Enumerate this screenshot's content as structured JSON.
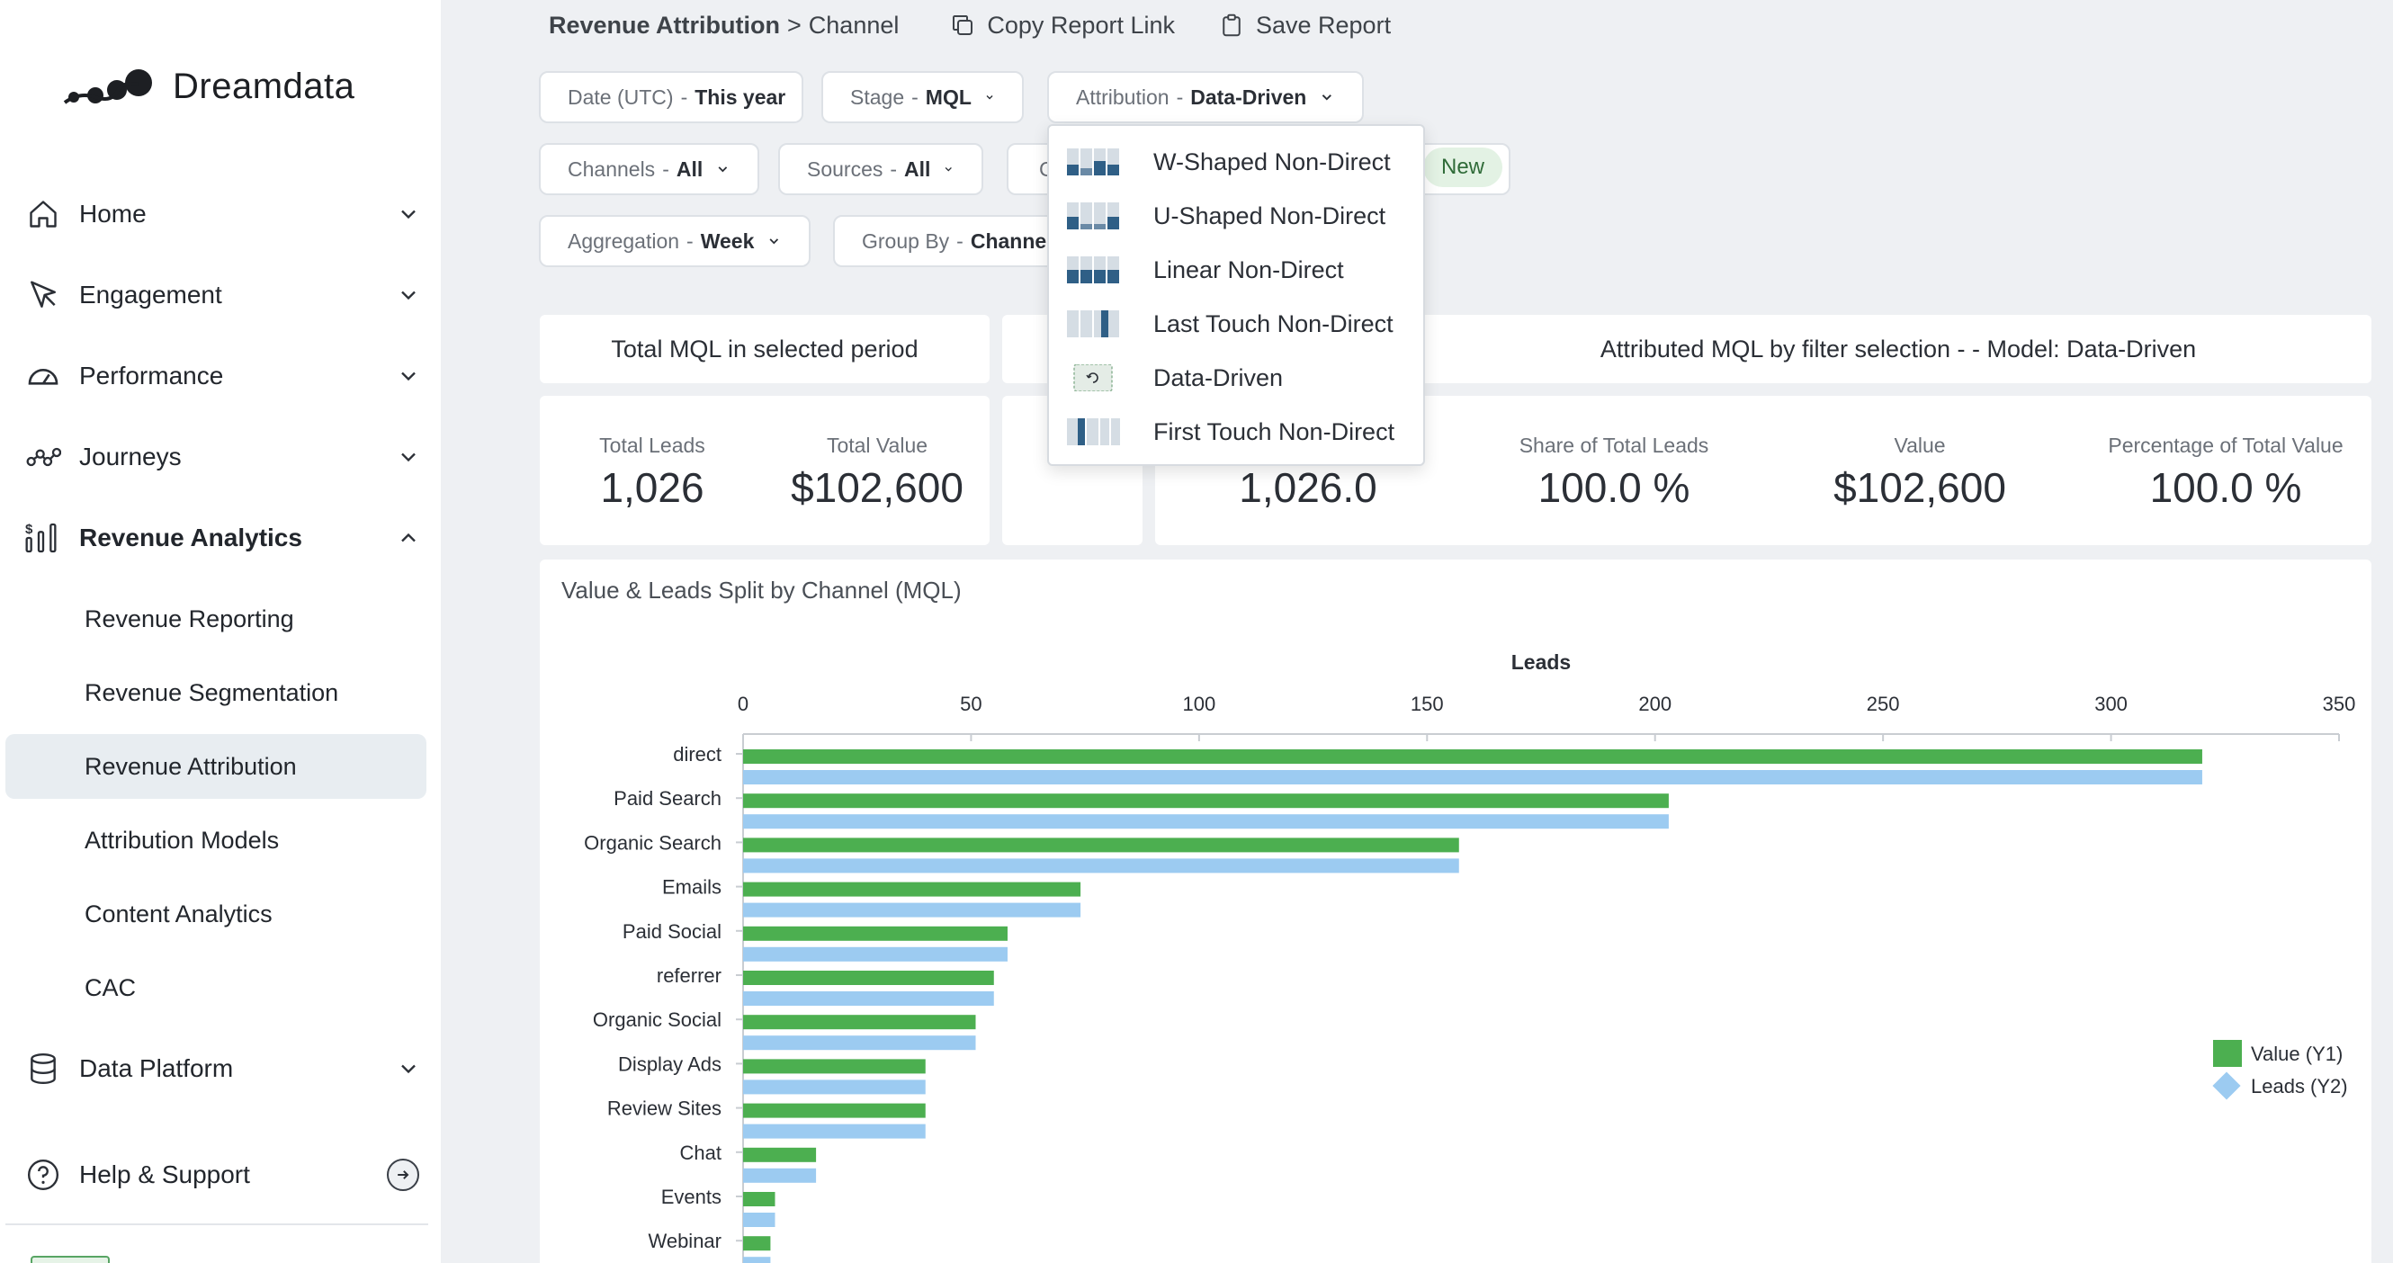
{
  "app": {
    "name": "Dreamdata"
  },
  "sidebar": {
    "items": [
      {
        "label": "Home",
        "icon": "home-icon",
        "expanded": false
      },
      {
        "label": "Engagement",
        "icon": "cursor-icon",
        "expanded": false
      },
      {
        "label": "Performance",
        "icon": "speedometer-icon",
        "expanded": false
      },
      {
        "label": "Journeys",
        "icon": "journeys-icon",
        "expanded": false
      },
      {
        "label": "Revenue Analytics",
        "icon": "revenue-analytics-icon",
        "expanded": true
      }
    ],
    "sub_items": [
      "Revenue Reporting",
      "Revenue Segmentation",
      "Revenue Attribution",
      "Attribution Models",
      "Content Analytics",
      "CAC"
    ],
    "active_sub_item": "Revenue Attribution",
    "data_platform": "Data Platform",
    "help": "Help & Support"
  },
  "breadcrumb": {
    "parent": "Revenue Attribution",
    "separator": ">",
    "current": "Channel"
  },
  "actions": {
    "copy_link": "Copy Report Link",
    "save_report": "Save Report"
  },
  "filters": {
    "date": {
      "label": "Date (UTC)",
      "value": "This year"
    },
    "stage": {
      "label": "Stage",
      "value": "MQL"
    },
    "attribution": {
      "label": "Attribution",
      "value": "Data-Driven"
    },
    "channels": {
      "label": "Channels",
      "value": "All"
    },
    "sources": {
      "label": "Sources",
      "value": "All"
    },
    "hidden_filter": {
      "label": "C"
    },
    "new_badge": "New",
    "aggregation": {
      "label": "Aggregation",
      "value": "Week"
    },
    "group_by": {
      "label": "Group By",
      "value": "Channel"
    }
  },
  "attribution_dropdown": {
    "options": [
      "W-Shaped Non-Direct",
      "U-Shaped Non-Direct",
      "Linear Non-Direct",
      "Last Touch Non-Direct",
      "Data-Driven",
      "First Touch Non-Direct"
    ],
    "selected": "Data-Driven"
  },
  "summary_left": {
    "title": "Total MQL in selected period",
    "total_leads_label": "Total Leads",
    "total_leads": "1,026",
    "total_value_label": "Total Value",
    "total_value": "$102,600"
  },
  "summary_right": {
    "title": "Attributed MQL by filter selection - - Model: Data-Driven",
    "leads": "1,026.0",
    "share_label": "Share of Total Leads",
    "share": "100.0 %",
    "value_label": "Value",
    "value": "$102,600",
    "pct_value_label": "Percentage of Total Value",
    "pct_value": "100.0 %"
  },
  "chart_title": "Value & Leads Split by Channel (MQL)",
  "chart_data": {
    "type": "bar",
    "orientation": "horizontal",
    "title": "Value & Leads Split by Channel (MQL)",
    "xlabel": "Leads",
    "xlim": [
      0,
      350
    ],
    "xticks": [
      0,
      50,
      100,
      150,
      200,
      250,
      300,
      350
    ],
    "categories": [
      "direct",
      "Paid Search",
      "Organic Search",
      "Emails",
      "Paid Social",
      "referrer",
      "Organic Social",
      "Display Ads",
      "Review Sites",
      "Chat",
      "Events",
      "Webinar"
    ],
    "series": [
      {
        "name": "Value (Y1)",
        "color": "#4caf50",
        "values": [
          320,
          203,
          157,
          74,
          58,
          55,
          51,
          40,
          40,
          16,
          7,
          6
        ]
      },
      {
        "name": "Leads (Y2)",
        "color": "#9ccbf1",
        "values": [
          320,
          203,
          157,
          74,
          58,
          55,
          51,
          40,
          40,
          16,
          7,
          6
        ]
      }
    ],
    "legend_position": "right",
    "grid": false
  },
  "colors": {
    "accent_green": "#4caf50",
    "accent_blue": "#9ccbf1",
    "active_bg": "#e8edf1"
  }
}
